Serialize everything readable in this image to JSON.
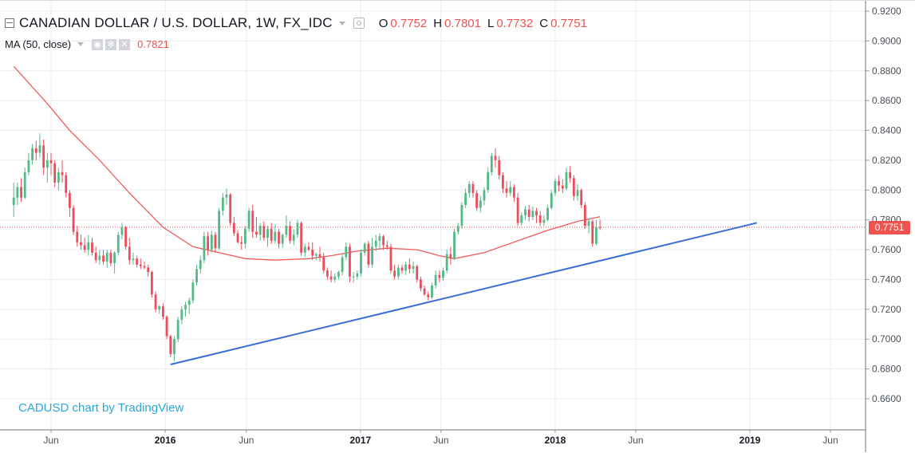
{
  "header": {
    "title": "CANADIAN DOLLAR / U.S. DOLLAR, 1W, FX_IDC",
    "ohlc": [
      {
        "key": "O",
        "value": "0.7752"
      },
      {
        "key": "H",
        "value": "0.7801"
      },
      {
        "key": "L",
        "value": "0.7732"
      },
      {
        "key": "C",
        "value": "0.7751"
      }
    ]
  },
  "indicator": {
    "label": "MA (50, close)",
    "value": "0.7821",
    "buttons": [
      "eye-icon",
      "gear-icon",
      "close-icon"
    ]
  },
  "watermark": "CADUSD chart by TradingView",
  "price_tag": "0.7751",
  "colors": {
    "up": "#53b987",
    "down": "#eb4d5c",
    "ma": "#f25a5a",
    "trendline": "#3a6ed6",
    "grid": "#e8ecf0",
    "watermark": "#2aa7dd"
  },
  "chart_data": {
    "type": "candlestick",
    "title": "CANADIAN DOLLAR / U.S. DOLLAR, 1W, FX_IDC",
    "timeframe": "1W",
    "ylim": [
      0.645,
      0.925
    ],
    "y_ticks": [
      "0.6600",
      "0.6800",
      "0.7000",
      "0.7200",
      "0.7400",
      "0.7600",
      "0.7800",
      "0.8000",
      "0.8200",
      "0.8400",
      "0.8600",
      "0.8800",
      "0.9000",
      "0.9200"
    ],
    "x_ticks": [
      "Jun",
      "2016",
      "Jun",
      "2017",
      "Jun",
      "2018",
      "Jun",
      "2019",
      "Jun"
    ],
    "x_tick_dates": [
      "2015-06-01",
      "2016-01-01",
      "2016-06-01",
      "2017-01-01",
      "2017-06-01",
      "2018-01-01",
      "2018-06-01",
      "2019-01-01",
      "2019-06-01"
    ],
    "grid": true,
    "last_price": 0.7751,
    "candles": [
      [
        "2015-03-23",
        0.79,
        0.805,
        0.782,
        0.795
      ],
      [
        "2015-03-30",
        0.795,
        0.805,
        0.79,
        0.802
      ],
      [
        "2015-04-06",
        0.802,
        0.808,
        0.792,
        0.795
      ],
      [
        "2015-04-13",
        0.795,
        0.815,
        0.794,
        0.812
      ],
      [
        "2015-04-20",
        0.812,
        0.825,
        0.81,
        0.82
      ],
      [
        "2015-04-27",
        0.82,
        0.831,
        0.817,
        0.828
      ],
      [
        "2015-05-04",
        0.828,
        0.833,
        0.82,
        0.825
      ],
      [
        "2015-05-11",
        0.825,
        0.838,
        0.822,
        0.83
      ],
      [
        "2015-05-18",
        0.83,
        0.834,
        0.81,
        0.815
      ],
      [
        "2015-05-25",
        0.815,
        0.825,
        0.805,
        0.82
      ],
      [
        "2015-06-01",
        0.82,
        0.825,
        0.81,
        0.818
      ],
      [
        "2015-06-08",
        0.818,
        0.82,
        0.802,
        0.805
      ],
      [
        "2015-06-15",
        0.805,
        0.815,
        0.8,
        0.812
      ],
      [
        "2015-06-22",
        0.812,
        0.82,
        0.805,
        0.81
      ],
      [
        "2015-06-29",
        0.81,
        0.812,
        0.795,
        0.798
      ],
      [
        "2015-07-06",
        0.798,
        0.8,
        0.782,
        0.788
      ],
      [
        "2015-07-13",
        0.788,
        0.79,
        0.77,
        0.772
      ],
      [
        "2015-07-20",
        0.772,
        0.776,
        0.762,
        0.765
      ],
      [
        "2015-07-27",
        0.765,
        0.77,
        0.76,
        0.763
      ],
      [
        "2015-08-03",
        0.763,
        0.768,
        0.758,
        0.76
      ],
      [
        "2015-08-10",
        0.76,
        0.77,
        0.756,
        0.765
      ],
      [
        "2015-08-17",
        0.765,
        0.768,
        0.756,
        0.758
      ],
      [
        "2015-08-24",
        0.758,
        0.762,
        0.751,
        0.753
      ],
      [
        "2015-08-31",
        0.753,
        0.76,
        0.75,
        0.756
      ],
      [
        "2015-09-07",
        0.756,
        0.76,
        0.75,
        0.752
      ],
      [
        "2015-09-14",
        0.752,
        0.76,
        0.748,
        0.758
      ],
      [
        "2015-09-21",
        0.758,
        0.76,
        0.749,
        0.751
      ],
      [
        "2015-09-28",
        0.751,
        0.759,
        0.744,
        0.758
      ],
      [
        "2015-10-05",
        0.758,
        0.772,
        0.756,
        0.77
      ],
      [
        "2015-10-12",
        0.77,
        0.778,
        0.767,
        0.775
      ],
      [
        "2015-10-19",
        0.775,
        0.776,
        0.76,
        0.762
      ],
      [
        "2015-10-26",
        0.762,
        0.768,
        0.75,
        0.753
      ],
      [
        "2015-11-02",
        0.753,
        0.758,
        0.75,
        0.754
      ],
      [
        "2015-11-09",
        0.754,
        0.756,
        0.748,
        0.75
      ],
      [
        "2015-11-16",
        0.75,
        0.754,
        0.747,
        0.749
      ],
      [
        "2015-11-23",
        0.749,
        0.752,
        0.747,
        0.748
      ],
      [
        "2015-11-30",
        0.748,
        0.75,
        0.742,
        0.745
      ],
      [
        "2015-12-07",
        0.745,
        0.746,
        0.728,
        0.73
      ],
      [
        "2015-12-14",
        0.73,
        0.732,
        0.718,
        0.72
      ],
      [
        "2015-12-21",
        0.72,
        0.723,
        0.717,
        0.722
      ],
      [
        "2015-12-28",
        0.722,
        0.724,
        0.713,
        0.715
      ],
      [
        "2016-01-04",
        0.715,
        0.716,
        0.7,
        0.702
      ],
      [
        "2016-01-11",
        0.702,
        0.703,
        0.688,
        0.69
      ],
      [
        "2016-01-18",
        0.69,
        0.702,
        0.685,
        0.7
      ],
      [
        "2016-01-25",
        0.7,
        0.715,
        0.698,
        0.713
      ],
      [
        "2016-02-01",
        0.713,
        0.722,
        0.71,
        0.72
      ],
      [
        "2016-02-08",
        0.72,
        0.725,
        0.715,
        0.723
      ],
      [
        "2016-02-15",
        0.723,
        0.728,
        0.717,
        0.726
      ],
      [
        "2016-02-22",
        0.726,
        0.74,
        0.724,
        0.738
      ],
      [
        "2016-02-29",
        0.738,
        0.75,
        0.736,
        0.747
      ],
      [
        "2016-03-07",
        0.747,
        0.756,
        0.744,
        0.753
      ],
      [
        "2016-03-14",
        0.753,
        0.772,
        0.751,
        0.769
      ],
      [
        "2016-03-21",
        0.769,
        0.772,
        0.756,
        0.76
      ],
      [
        "2016-03-28",
        0.76,
        0.773,
        0.758,
        0.77
      ],
      [
        "2016-04-04",
        0.77,
        0.772,
        0.758,
        0.761
      ],
      [
        "2016-04-11",
        0.761,
        0.788,
        0.76,
        0.786
      ],
      [
        "2016-04-18",
        0.786,
        0.798,
        0.783,
        0.795
      ],
      [
        "2016-04-25",
        0.795,
        0.801,
        0.79,
        0.797
      ],
      [
        "2016-05-02",
        0.797,
        0.798,
        0.776,
        0.778
      ],
      [
        "2016-05-09",
        0.778,
        0.782,
        0.769,
        0.771
      ],
      [
        "2016-05-16",
        0.771,
        0.773,
        0.764,
        0.765
      ],
      [
        "2016-05-23",
        0.765,
        0.769,
        0.76,
        0.764
      ],
      [
        "2016-05-30",
        0.764,
        0.776,
        0.761,
        0.774
      ],
      [
        "2016-06-06",
        0.774,
        0.788,
        0.772,
        0.786
      ],
      [
        "2016-06-13",
        0.786,
        0.79,
        0.768,
        0.772
      ],
      [
        "2016-06-20",
        0.772,
        0.782,
        0.768,
        0.77
      ],
      [
        "2016-06-27",
        0.77,
        0.778,
        0.766,
        0.776
      ],
      [
        "2016-07-04",
        0.776,
        0.779,
        0.766,
        0.768
      ],
      [
        "2016-07-11",
        0.768,
        0.776,
        0.762,
        0.774
      ],
      [
        "2016-07-18",
        0.774,
        0.778,
        0.764,
        0.766
      ],
      [
        "2016-07-25",
        0.766,
        0.777,
        0.764,
        0.772
      ],
      [
        "2016-08-01",
        0.772,
        0.774,
        0.761,
        0.764
      ],
      [
        "2016-08-08",
        0.764,
        0.771,
        0.761,
        0.77
      ],
      [
        "2016-08-15",
        0.77,
        0.783,
        0.768,
        0.776
      ],
      [
        "2016-08-22",
        0.776,
        0.779,
        0.764,
        0.766
      ],
      [
        "2016-08-29",
        0.766,
        0.774,
        0.763,
        0.77
      ],
      [
        "2016-09-05",
        0.77,
        0.78,
        0.768,
        0.778
      ],
      [
        "2016-09-12",
        0.778,
        0.779,
        0.756,
        0.758
      ],
      [
        "2016-09-19",
        0.758,
        0.764,
        0.755,
        0.762
      ],
      [
        "2016-09-26",
        0.762,
        0.765,
        0.759,
        0.76
      ],
      [
        "2016-10-03",
        0.76,
        0.765,
        0.753,
        0.756
      ],
      [
        "2016-10-10",
        0.756,
        0.758,
        0.753,
        0.757
      ],
      [
        "2016-10-17",
        0.757,
        0.762,
        0.752,
        0.755
      ],
      [
        "2016-10-24",
        0.755,
        0.758,
        0.744,
        0.746
      ],
      [
        "2016-10-31",
        0.746,
        0.748,
        0.74,
        0.742
      ],
      [
        "2016-11-07",
        0.742,
        0.746,
        0.738,
        0.74
      ],
      [
        "2016-11-14",
        0.74,
        0.744,
        0.738,
        0.742
      ],
      [
        "2016-11-21",
        0.742,
        0.746,
        0.74,
        0.745
      ],
      [
        "2016-11-28",
        0.745,
        0.757,
        0.743,
        0.755
      ],
      [
        "2016-12-05",
        0.755,
        0.765,
        0.753,
        0.762
      ],
      [
        "2016-12-12",
        0.762,
        0.764,
        0.738,
        0.742
      ],
      [
        "2016-12-19",
        0.742,
        0.745,
        0.738,
        0.742
      ],
      [
        "2016-12-26",
        0.742,
        0.746,
        0.74,
        0.744
      ],
      [
        "2017-01-02",
        0.744,
        0.76,
        0.742,
        0.758
      ],
      [
        "2017-01-09",
        0.758,
        0.765,
        0.756,
        0.764
      ],
      [
        "2017-01-16",
        0.764,
        0.766,
        0.748,
        0.75
      ],
      [
        "2017-01-23",
        0.75,
        0.768,
        0.748,
        0.762
      ],
      [
        "2017-01-30",
        0.762,
        0.77,
        0.759,
        0.766
      ],
      [
        "2017-02-06",
        0.766,
        0.771,
        0.76,
        0.769
      ],
      [
        "2017-02-13",
        0.769,
        0.77,
        0.76,
        0.763
      ],
      [
        "2017-02-20",
        0.763,
        0.766,
        0.76,
        0.762
      ],
      [
        "2017-02-27",
        0.762,
        0.764,
        0.744,
        0.746
      ],
      [
        "2017-03-06",
        0.746,
        0.75,
        0.74,
        0.742
      ],
      [
        "2017-03-13",
        0.742,
        0.75,
        0.74,
        0.748
      ],
      [
        "2017-03-20",
        0.748,
        0.75,
        0.744,
        0.746
      ],
      [
        "2017-03-27",
        0.746,
        0.752,
        0.743,
        0.75
      ],
      [
        "2017-04-03",
        0.75,
        0.754,
        0.744,
        0.747
      ],
      [
        "2017-04-10",
        0.747,
        0.752,
        0.744,
        0.749
      ],
      [
        "2017-04-17",
        0.749,
        0.75,
        0.738,
        0.74
      ],
      [
        "2017-04-24",
        0.74,
        0.742,
        0.732,
        0.734
      ],
      [
        "2017-05-01",
        0.734,
        0.736,
        0.729,
        0.73
      ],
      [
        "2017-05-08",
        0.73,
        0.732,
        0.726,
        0.728
      ],
      [
        "2017-05-15",
        0.728,
        0.738,
        0.727,
        0.736
      ],
      [
        "2017-05-22",
        0.736,
        0.746,
        0.734,
        0.743
      ],
      [
        "2017-05-29",
        0.743,
        0.746,
        0.738,
        0.741
      ],
      [
        "2017-06-05",
        0.741,
        0.748,
        0.739,
        0.746
      ],
      [
        "2017-06-12",
        0.746,
        0.76,
        0.744,
        0.757
      ],
      [
        "2017-06-19",
        0.757,
        0.762,
        0.75,
        0.754
      ],
      [
        "2017-06-26",
        0.754,
        0.774,
        0.753,
        0.772
      ],
      [
        "2017-07-03",
        0.772,
        0.778,
        0.77,
        0.776
      ],
      [
        "2017-07-10",
        0.776,
        0.792,
        0.774,
        0.79
      ],
      [
        "2017-07-17",
        0.79,
        0.801,
        0.788,
        0.798
      ],
      [
        "2017-07-24",
        0.798,
        0.806,
        0.795,
        0.804
      ],
      [
        "2017-07-31",
        0.804,
        0.806,
        0.795,
        0.798
      ],
      [
        "2017-08-07",
        0.798,
        0.8,
        0.786,
        0.788
      ],
      [
        "2017-08-14",
        0.788,
        0.796,
        0.785,
        0.793
      ],
      [
        "2017-08-21",
        0.793,
        0.802,
        0.79,
        0.8
      ],
      [
        "2017-08-28",
        0.8,
        0.815,
        0.798,
        0.812
      ],
      [
        "2017-09-04",
        0.812,
        0.825,
        0.81,
        0.823
      ],
      [
        "2017-09-11",
        0.823,
        0.828,
        0.815,
        0.82
      ],
      [
        "2017-09-18",
        0.82,
        0.823,
        0.807,
        0.81
      ],
      [
        "2017-09-25",
        0.81,
        0.812,
        0.798,
        0.801
      ],
      [
        "2017-10-02",
        0.801,
        0.806,
        0.795,
        0.798
      ],
      [
        "2017-10-09",
        0.798,
        0.806,
        0.796,
        0.802
      ],
      [
        "2017-10-16",
        0.802,
        0.804,
        0.792,
        0.795
      ],
      [
        "2017-10-23",
        0.795,
        0.798,
        0.776,
        0.778
      ],
      [
        "2017-10-30",
        0.778,
        0.785,
        0.776,
        0.783
      ],
      [
        "2017-11-06",
        0.783,
        0.789,
        0.78,
        0.787
      ],
      [
        "2017-11-13",
        0.787,
        0.79,
        0.779,
        0.782
      ],
      [
        "2017-11-20",
        0.782,
        0.789,
        0.78,
        0.786
      ],
      [
        "2017-11-27",
        0.786,
        0.788,
        0.778,
        0.783
      ],
      [
        "2017-12-04",
        0.783,
        0.786,
        0.776,
        0.778
      ],
      [
        "2017-12-11",
        0.778,
        0.783,
        0.776,
        0.78
      ],
      [
        "2017-12-18",
        0.78,
        0.79,
        0.779,
        0.788
      ],
      [
        "2017-12-25",
        0.788,
        0.8,
        0.787,
        0.798
      ],
      [
        "2018-01-01",
        0.798,
        0.808,
        0.796,
        0.806
      ],
      [
        "2018-01-08",
        0.806,
        0.81,
        0.799,
        0.803
      ],
      [
        "2018-01-15",
        0.803,
        0.807,
        0.798,
        0.801
      ],
      [
        "2018-01-22",
        0.801,
        0.815,
        0.8,
        0.812
      ],
      [
        "2018-01-29",
        0.812,
        0.816,
        0.805,
        0.808
      ],
      [
        "2018-02-05",
        0.808,
        0.81,
        0.793,
        0.796
      ],
      [
        "2018-02-12",
        0.796,
        0.804,
        0.793,
        0.8
      ],
      [
        "2018-02-19",
        0.8,
        0.801,
        0.788,
        0.79
      ],
      [
        "2018-02-26",
        0.79,
        0.792,
        0.774,
        0.776
      ],
      [
        "2018-03-05",
        0.776,
        0.781,
        0.771,
        0.779
      ],
      [
        "2018-03-12",
        0.779,
        0.78,
        0.762,
        0.764
      ],
      [
        "2018-03-19",
        0.764,
        0.78,
        0.763,
        0.7752
      ],
      [
        "2018-03-26",
        0.7752,
        0.7801,
        0.7732,
        0.7751
      ]
    ],
    "series": [
      {
        "name": "MA (50, close)",
        "points": [
          [
            "2015-03-23",
            0.883
          ],
          [
            "2015-05-25",
            0.858
          ],
          [
            "2015-07-06",
            0.84
          ],
          [
            "2015-08-31",
            0.82
          ],
          [
            "2015-10-26",
            0.798
          ],
          [
            "2015-12-28",
            0.775
          ],
          [
            "2016-02-22",
            0.762
          ],
          [
            "2016-04-11",
            0.758
          ],
          [
            "2016-05-30",
            0.754
          ],
          [
            "2016-07-25",
            0.753
          ],
          [
            "2016-09-26",
            0.754
          ],
          [
            "2016-11-07",
            0.756
          ],
          [
            "2016-12-26",
            0.759
          ],
          [
            "2017-02-20",
            0.761
          ],
          [
            "2017-04-17",
            0.76
          ],
          [
            "2017-05-29",
            0.756
          ],
          [
            "2017-06-26",
            0.754
          ],
          [
            "2017-08-21",
            0.758
          ],
          [
            "2017-10-23",
            0.766
          ],
          [
            "2017-12-18",
            0.773
          ],
          [
            "2018-02-12",
            0.779
          ],
          [
            "2018-03-26",
            0.7821
          ]
        ]
      },
      {
        "name": "trendline",
        "points": [
          [
            "2016-01-11",
            0.683
          ],
          [
            "2019-01-14",
            0.778
          ]
        ]
      }
    ]
  }
}
